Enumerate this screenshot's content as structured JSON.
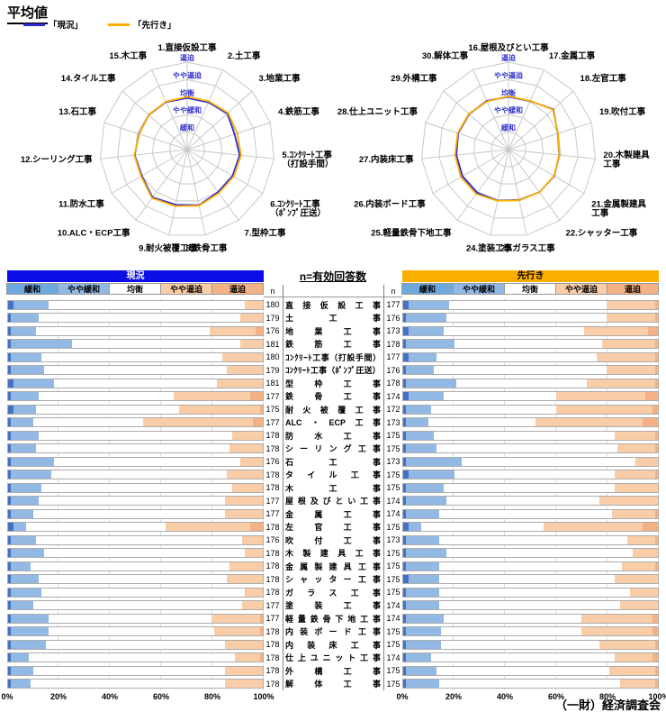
{
  "title": "平均値",
  "legend": {
    "genkyo_label": "「現況」",
    "sakiyuki_label": "「先行き」"
  },
  "footer": "（一財）経済調査会",
  "middle": {
    "title": "n=有効回答数",
    "n_label": "n"
  },
  "bar_legend": [
    "緩和",
    "やや緩和",
    "均衡",
    "やや逼迫",
    "逼迫"
  ],
  "x_ticks": [
    "0%",
    "20%",
    "40%",
    "60%",
    "80%",
    "100%"
  ],
  "colors": {
    "genkyo_line": "#2B2BD0",
    "sakiyuki_line": "#FFAE00",
    "header_genkyo_bg": "#0D0DE6",
    "header_genkyo_text": "#FFFFFF",
    "header_sakiyuki_bg": "#F9AE00",
    "header_sakiyuki_text": "#000000",
    "kanwa_legend": "#6FA8DC",
    "kanwa_bar": "#4472C4",
    "yaya_kanwa": "#92B8E4",
    "kinko": "#FFFFFF",
    "yaya_hippaku": "#FACDA9",
    "hippaku": "#F4B183",
    "grid": "#C8C8C8",
    "ring_label": "#3333CC"
  },
  "chart_data": [
    {
      "type": "radar",
      "id": "radar-left",
      "rings": [
        "緩和",
        "やや緩和",
        "均衡",
        "やや逼迫",
        "逼迫"
      ],
      "scale": [
        1,
        5
      ],
      "categories": [
        "1.直接仮設工事",
        "2.土工事",
        "3.地業工事",
        "4.鉄筋工事",
        "5.ｺﾝｸﾘｰﾄ工事\n（打設手間）",
        "6.ｺﾝｸﾘｰﾄ工事\n（ﾎﾟﾝﾌﾟ圧送）",
        "7.型枠工事",
        "8.鉄骨工事",
        "9.耐火被覆工事",
        "10.ALC・ECP工事",
        "11.防水工事",
        "12.シーリング工事",
        "13.石工事",
        "14.タイル工事",
        "15.木工事"
      ],
      "series": [
        {
          "name": "「現況」",
          "color": "#2B2BD0",
          "values": [
            2.95,
            2.96,
            3.1,
            2.85,
            3.02,
            3.0,
            3.0,
            3.25,
            3.22,
            3.38,
            3.0,
            3.02,
            2.9,
            2.96,
            2.98
          ]
        },
        {
          "name": "「先行き」",
          "color": "#FFAE00",
          "values": [
            3.02,
            3.03,
            3.15,
            3.02,
            3.1,
            3.08,
            3.08,
            3.28,
            3.3,
            3.43,
            3.05,
            3.05,
            2.88,
            2.97,
            3.0
          ]
        }
      ]
    },
    {
      "type": "radar",
      "id": "radar-right",
      "rings": [
        "緩和",
        "やや緩和",
        "均衡",
        "やや逼迫",
        "逼迫"
      ],
      "scale": [
        1,
        5
      ],
      "categories": [
        "16.屋根及びとい工事",
        "17.金属工事",
        "18.左官工事",
        "19.吹付工事",
        "20.木製建具\n工事",
        "21.金属製建具\n工事",
        "22.シャッター工事",
        "23.ガラス工事",
        "24.塗装工事",
        "25.軽量鉄骨下地工事",
        "26.内装ボード工事",
        "27.内装床工事",
        "28.仕上ユニット工事",
        "29.外構工事",
        "30.解体工事"
      ],
      "series": [
        {
          "name": "「現況」",
          "color": "#2B2BD0",
          "values": [
            3.02,
            3.04,
            3.45,
            2.97,
            2.92,
            3.03,
            3.01,
            2.94,
            2.98,
            3.05,
            3.05,
            3.0,
            3.03,
            3.04,
            3.05
          ]
        },
        {
          "name": "「先行き」",
          "color": "#FFAE00",
          "values": [
            3.05,
            3.05,
            3.42,
            2.98,
            2.93,
            3.01,
            3.02,
            2.96,
            3.0,
            3.14,
            3.15,
            3.08,
            3.06,
            3.06,
            3.02
          ]
        }
      ]
    },
    {
      "type": "bar",
      "id": "bars-genkyo",
      "title": "現況",
      "stacked": true,
      "xlim": [
        0,
        100
      ],
      "unit": "%",
      "categories": [
        "直接仮設工事",
        "土工事",
        "地業工事",
        "鉄筋工事",
        "ｺﾝｸﾘｰﾄ工事（打設手間）",
        "ｺﾝｸﾘｰﾄ工事（ﾎﾟﾝﾌﾟ圧送）",
        "型枠工事",
        "鉄骨工事",
        "耐火被覆工事",
        "ALC・ECP工事",
        "防水工事",
        "シーリング工事",
        "石工事",
        "タイル工事",
        "木工事",
        "屋根及びとい工事",
        "金属工事",
        "左官工事",
        "吹付工事",
        "木製建具工事",
        "金属製建具工事",
        "シャッター工事",
        "ガラス工事",
        "塗装工事",
        "軽量鉄骨下地工事",
        "内装ボード工事",
        "内装床工事",
        "仕上ユニット工事",
        "外構工事",
        "解体工事"
      ],
      "n": [
        180,
        179,
        176,
        181,
        180,
        179,
        181,
        177,
        175,
        177,
        178,
        178,
        176,
        178,
        178,
        177,
        177,
        178,
        176,
        178,
        178,
        178,
        178,
        177,
        177,
        178,
        178,
        178,
        178,
        178
      ],
      "series": [
        {
          "name": "緩和",
          "values": [
            2,
            1,
            1,
            1,
            1,
            1,
            2,
            1,
            2,
            1,
            1,
            1,
            1,
            1,
            1,
            1,
            1,
            2,
            1,
            1,
            1,
            1,
            1,
            1,
            1,
            1,
            1,
            1,
            1,
            1
          ]
        },
        {
          "name": "やや緩和",
          "values": [
            14,
            11,
            10,
            24,
            12,
            13,
            16,
            11,
            9,
            9,
            11,
            10,
            17,
            16,
            12,
            11,
            9,
            5,
            10,
            13,
            8,
            11,
            12,
            9,
            15,
            15,
            14,
            7,
            9,
            8
          ]
        },
        {
          "name": "均衡",
          "values": [
            77,
            79,
            68,
            66,
            71,
            72,
            64,
            53,
            56,
            43,
            76,
            76,
            73,
            69,
            75,
            73,
            75,
            55,
            81,
            79,
            78,
            74,
            80,
            82,
            64,
            65,
            70,
            81,
            75,
            76
          ]
        },
        {
          "name": "やや逼迫",
          "values": [
            7,
            9,
            18,
            9,
            16,
            14,
            18,
            30,
            32,
            43,
            12,
            13,
            9,
            14,
            12,
            15,
            15,
            33,
            8,
            7,
            13,
            14,
            7,
            8,
            19,
            18,
            15,
            10,
            15,
            15
          ]
        },
        {
          "name": "逼迫",
          "values": [
            0,
            0,
            3,
            0,
            0,
            0,
            0,
            5,
            1,
            4,
            0,
            0,
            0,
            0,
            0,
            0,
            0,
            5,
            0,
            0,
            0,
            0,
            0,
            0,
            1,
            1,
            0,
            1,
            0,
            0
          ]
        }
      ]
    },
    {
      "type": "bar",
      "id": "bars-sakiyuki",
      "title": "先行き",
      "stacked": true,
      "xlim": [
        0,
        100
      ],
      "unit": "%",
      "categories": [
        "直接仮設工事",
        "土工事",
        "地業工事",
        "鉄筋工事",
        "ｺﾝｸﾘｰﾄ工事（打設手間）",
        "ｺﾝｸﾘｰﾄ工事（ﾎﾟﾝﾌﾟ圧送）",
        "型枠工事",
        "鉄骨工事",
        "耐火被覆工事",
        "ALC・ECP工事",
        "防水工事",
        "シーリング工事",
        "石工事",
        "タイル工事",
        "木工事",
        "屋根及びとい工事",
        "金属工事",
        "左官工事",
        "吹付工事",
        "木製建具工事",
        "金属製建具工事",
        "シャッター工事",
        "ガラス工事",
        "塗装工事",
        "軽量鉄骨下地工事",
        "内装ボード工事",
        "内装床工事",
        "仕上ユニット工事",
        "外構工事",
        "解体工事"
      ],
      "n": [
        177,
        176,
        173,
        178,
        177,
        176,
        178,
        174,
        172,
        173,
        175,
        175,
        173,
        175,
        175,
        174,
        174,
        175,
        173,
        175,
        175,
        175,
        175,
        174,
        174,
        175,
        175,
        174,
        175,
        175
      ],
      "series": [
        {
          "name": "緩和",
          "values": [
            2,
            1,
            2,
            1,
            2,
            1,
            1,
            2,
            1,
            1,
            1,
            1,
            1,
            2,
            1,
            1,
            1,
            2,
            1,
            1,
            1,
            2,
            1,
            1,
            1,
            1,
            1,
            1,
            1,
            1
          ]
        },
        {
          "name": "やや緩和",
          "values": [
            16,
            16,
            14,
            19,
            11,
            11,
            20,
            14,
            10,
            9,
            11,
            12,
            22,
            18,
            15,
            16,
            13,
            5,
            13,
            16,
            13,
            12,
            13,
            13,
            15,
            14,
            14,
            10,
            12,
            13
          ]
        },
        {
          "name": "均衡",
          "values": [
            62,
            63,
            55,
            58,
            63,
            68,
            51,
            44,
            49,
            42,
            71,
            71,
            68,
            63,
            67,
            60,
            68,
            48,
            74,
            73,
            72,
            69,
            75,
            71,
            54,
            55,
            62,
            72,
            68,
            71
          ]
        },
        {
          "name": "やや逼迫",
          "values": [
            19,
            19,
            25,
            21,
            23,
            19,
            27,
            35,
            38,
            42,
            16,
            15,
            9,
            16,
            17,
            23,
            17,
            39,
            11,
            10,
            13,
            17,
            11,
            15,
            28,
            28,
            22,
            15,
            18,
            14
          ]
        },
        {
          "name": "逼迫",
          "values": [
            1,
            1,
            4,
            1,
            1,
            1,
            1,
            5,
            2,
            6,
            1,
            1,
            0,
            1,
            0,
            0,
            1,
            6,
            1,
            0,
            1,
            0,
            0,
            0,
            2,
            2,
            1,
            2,
            1,
            1
          ]
        }
      ]
    }
  ]
}
